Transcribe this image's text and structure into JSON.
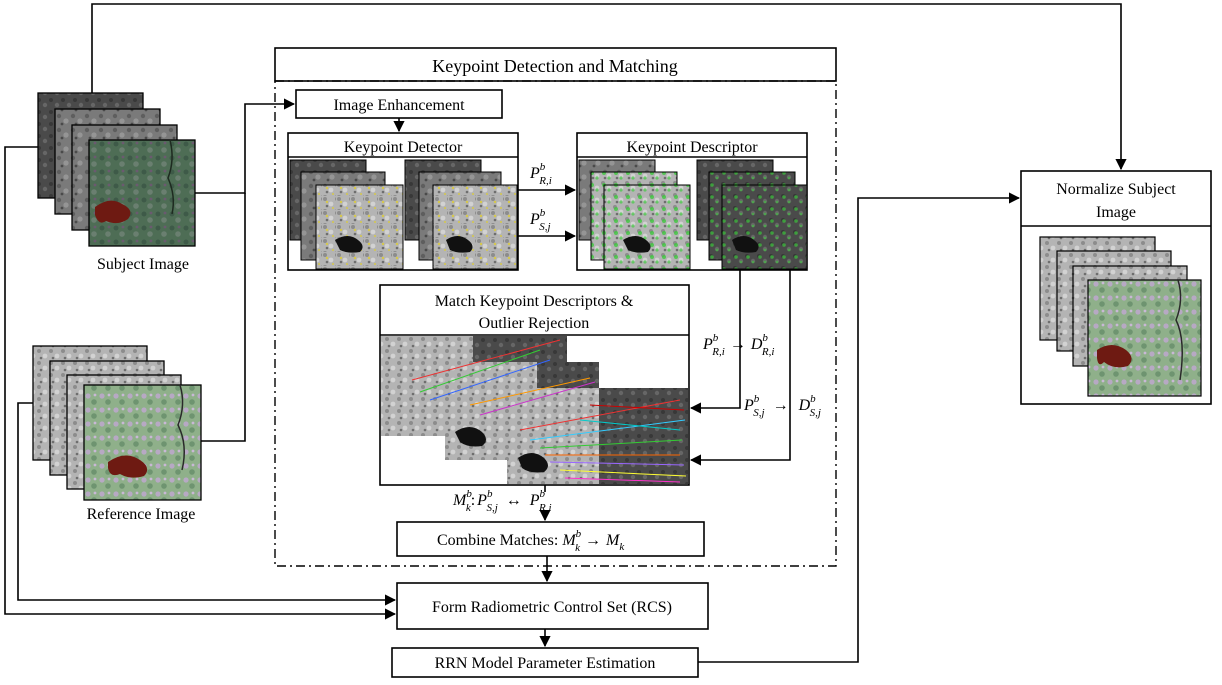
{
  "colors": {
    "stroke": "#000000",
    "background": "#ffffff",
    "sat_gray_dark": "#3c3c3c",
    "sat_gray_light": "#b4b4b4",
    "sat_color_green": "#4e6d55",
    "sat_color_bright": "#8fb08a",
    "water_red": "#6e1a12",
    "keypoint_yellow": "#d6c84a",
    "keypoint_green": "#3fc83f"
  },
  "diagram": {
    "title": "Keypoint Detection and Matching",
    "inputs": {
      "subject": "Subject Image",
      "reference": "Reference Image"
    },
    "steps": {
      "enhancement": "Image Enhancement",
      "detector": "Keypoint Detector",
      "descriptor": "Keypoint Descriptor",
      "match_line1": "Match Keypoint Descriptors &",
      "match_line2": "Outlier Rejection",
      "combine": "Combine Matches: ",
      "rcs": "Form Radiometric Control Set (RCS)",
      "rrn": "RRN Model Parameter Estimation",
      "normalize_line1": "Normalize Subject",
      "normalize_line2": "Image"
    },
    "symbols": {
      "P": "P",
      "D": "D",
      "M": "M",
      "b": "b",
      "R_i": "R,i",
      "S_j": "S,j",
      "k": "k",
      "arrow": "→",
      "biarrow": "↔",
      "colon": ":"
    }
  }
}
